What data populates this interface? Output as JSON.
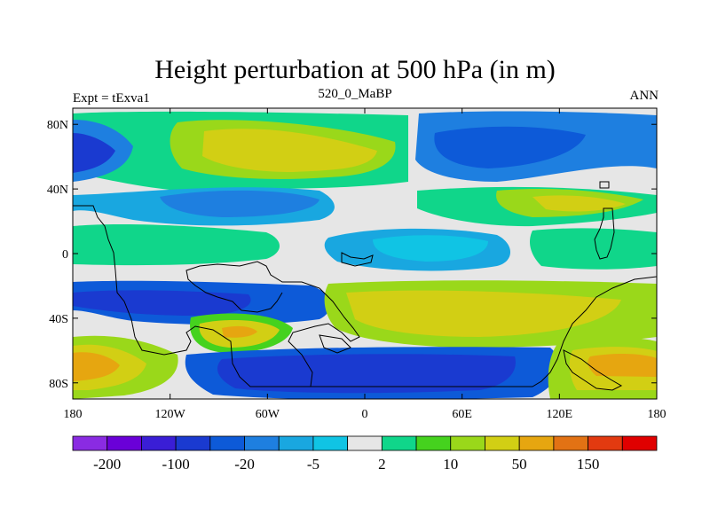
{
  "figure": {
    "title": "Height perturbation at 500 hPa (in m)",
    "left_label": "Expt = tExva1",
    "center_label": "520_0_MaBP",
    "right_label": "ANN"
  },
  "map": {
    "projection": "cylindrical equidistant",
    "lon_range": [
      -180,
      180
    ],
    "lat_range": [
      -90,
      90
    ],
    "lon_ticks": [
      {
        "value": -180,
        "label": "180"
      },
      {
        "value": -120,
        "label": "120W"
      },
      {
        "value": -60,
        "label": "60W"
      },
      {
        "value": 0,
        "label": "0"
      },
      {
        "value": 60,
        "label": "60E"
      },
      {
        "value": 120,
        "label": "120E"
      },
      {
        "value": 180,
        "label": "180"
      }
    ],
    "lat_ticks": [
      {
        "value": 80,
        "label": "80N"
      },
      {
        "value": 40,
        "label": "40N"
      },
      {
        "value": 0,
        "label": "0"
      },
      {
        "value": -40,
        "label": "40S"
      },
      {
        "value": -80,
        "label": "80S"
      }
    ]
  },
  "colorbar": {
    "colors": [
      "#8a2be2",
      "#6a00d8",
      "#3a1ed6",
      "#1a3ad0",
      "#0d5ad8",
      "#1e7fe0",
      "#19a7e0",
      "#10c4e4",
      "#e6e6e6",
      "#10d68a",
      "#45d21e",
      "#9ad81a",
      "#d2cf14",
      "#e6a610",
      "#e27214",
      "#e23a10",
      "#e00000"
    ],
    "labels": [
      {
        "after_box": 1,
        "text": "-200"
      },
      {
        "after_box": 3,
        "text": "-100"
      },
      {
        "after_box": 5,
        "text": "-20"
      },
      {
        "after_box": 7,
        "text": "-5"
      },
      {
        "after_box": 9,
        "text": "2"
      },
      {
        "after_box": 11,
        "text": "10"
      },
      {
        "after_box": 13,
        "text": "50"
      },
      {
        "after_box": 15,
        "text": "150"
      }
    ]
  }
}
